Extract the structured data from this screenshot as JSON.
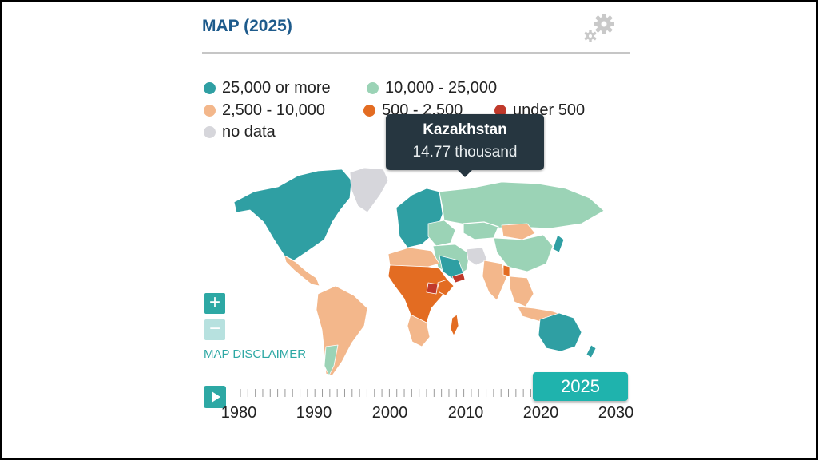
{
  "title": "MAP (2025)",
  "legend": [
    {
      "label": "25,000 or more",
      "color": "#2f9fa3"
    },
    {
      "label": "10,000 - 25,000",
      "color": "#9bd3b6"
    },
    {
      "label": "2,500 - 10,000",
      "color": "#f3b78b"
    },
    {
      "label": "500 - 2,500",
      "color": "#e36c22"
    },
    {
      "label": "under 500",
      "color": "#c0392b"
    },
    {
      "label": "no data",
      "color": "#d6d6db"
    }
  ],
  "zoom": {
    "in_label": "+",
    "out_label": "−"
  },
  "disclaimer": "MAP DISCLAIMER",
  "tooltip": {
    "country": "Kazakhstan",
    "value": "14.77 thousand"
  },
  "timeline": {
    "years": [
      "1980",
      "1990",
      "2000",
      "2010",
      "2020",
      "2030"
    ],
    "selected": "2025"
  },
  "icons": {
    "settings": "gear-icon",
    "play": "play-icon"
  }
}
